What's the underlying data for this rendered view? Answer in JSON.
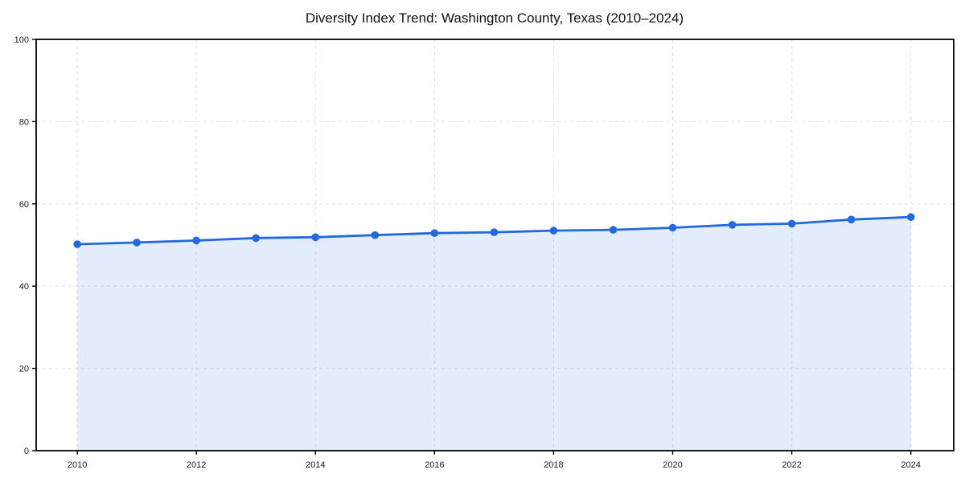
{
  "page": {
    "background": "#ffffff"
  },
  "chart_data": {
    "type": "line",
    "title": "Diversity Index Trend: Washington County, Texas (2010–2024)",
    "x": [
      2010,
      2011,
      2012,
      2013,
      2014,
      2015,
      2016,
      2017,
      2018,
      2019,
      2020,
      2021,
      2022,
      2023,
      2024
    ],
    "series": [
      {
        "name": "Diversity Index",
        "values": [
          50.2,
          50.6,
          51.1,
          51.7,
          51.9,
          52.4,
          52.9,
          53.1,
          53.5,
          53.7,
          54.2,
          54.9,
          55.2,
          56.2,
          56.8
        ]
      }
    ],
    "xlabel": "",
    "ylabel": "",
    "ylim": [
      0,
      100
    ],
    "yticks": [
      0,
      20,
      40,
      60,
      80,
      100
    ],
    "xticks": [
      2010,
      2012,
      2014,
      2016,
      2018,
      2020,
      2022,
      2024
    ],
    "grid": true,
    "grid_style": "dashed",
    "legend_position": "none",
    "colors": {
      "line": "#2268e0",
      "marker": "#2268e0",
      "area_fill": "rgba(34,104,224,0.12)",
      "gridline": "#e2e2e2",
      "axis": "#000000",
      "tick_label": "#1a1a1a",
      "title": "#111111"
    }
  }
}
